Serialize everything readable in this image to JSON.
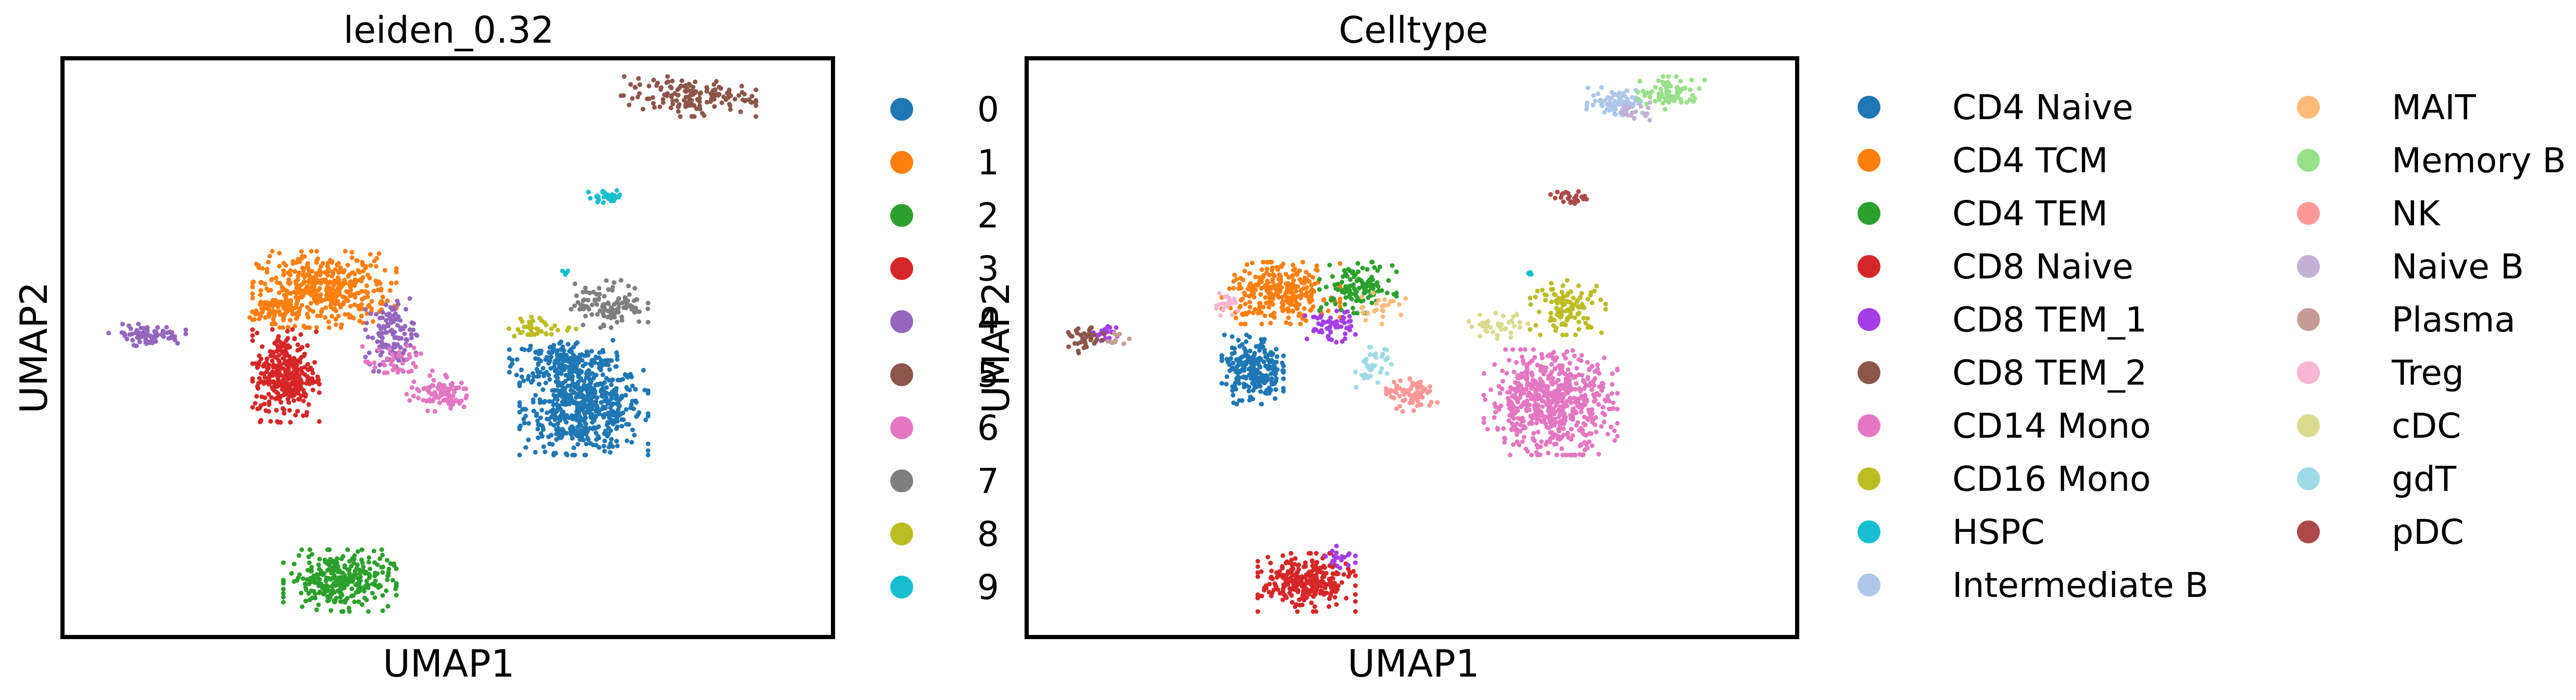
{
  "chart_data": [
    {
      "type": "scatter",
      "title": "leiden_0.32",
      "xlabel": "UMAP1",
      "ylabel": "UMAP2",
      "ticks": "none",
      "grid": false,
      "legend_position": "right",
      "series": [
        {
          "name": "0",
          "color": "#1f77b4",
          "clusters": [
            {
              "x": [
                -4.1,
                -1.6
              ],
              "y": [
                -6.2,
                -3.6
              ],
              "n": 560
            },
            {
              "x": [
                -4.3,
                -2.2
              ],
              "y": [
                -4.2,
                -3.0
              ],
              "n": 180
            }
          ]
        },
        {
          "name": "1",
          "color": "#ff7f0e",
          "clusters": [
            {
              "x": [
                -9.3,
                -6.5
              ],
              "y": [
                -2.7,
                -0.6
              ],
              "n": 420
            },
            {
              "x": [
                -9.4,
                -8.4
              ],
              "y": [
                -2.6,
                -1.8
              ],
              "n": 80
            }
          ]
        },
        {
          "name": "2",
          "color": "#2ca02c",
          "clusters": [
            {
              "x": [
                -8.7,
                -6.5
              ],
              "y": [
                -10.5,
                -8.8
              ],
              "n": 300
            }
          ]
        },
        {
          "name": "3",
          "color": "#d62728",
          "clusters": [
            {
              "x": [
                -9.3,
                -8.0
              ],
              "y": [
                -5.3,
                -2.7
              ],
              "n": 320
            }
          ]
        },
        {
          "name": "4",
          "color": "#9467bd",
          "clusters": [
            {
              "x": [
                -12.1,
                -10.6
              ],
              "y": [
                -3.2,
                -2.6
              ],
              "n": 80
            },
            {
              "x": [
                -7.1,
                -6.1
              ],
              "y": [
                -3.9,
                -1.9
              ],
              "n": 120
            }
          ]
        },
        {
          "name": "5",
          "color": "#8c564b",
          "clusters": [
            {
              "x": [
                -2.2,
                0.5
              ],
              "y": [
                3.1,
                4.2
              ],
              "n": 150
            }
          ]
        },
        {
          "name": "6",
          "color": "#e377c2",
          "clusters": [
            {
              "x": [
                -6.3,
                -5.0
              ],
              "y": [
                -5.0,
                -4.0
              ],
              "n": 90
            },
            {
              "x": [
                -7.2,
                -5.8
              ],
              "y": [
                -4.2,
                -3.2
              ],
              "n": 40
            }
          ]
        },
        {
          "name": "7",
          "color": "#7f7f7f",
          "clusters": [
            {
              "x": [
                -3.1,
                -1.6
              ],
              "y": [
                -2.7,
                -1.4
              ],
              "n": 110
            }
          ]
        },
        {
          "name": "8",
          "color": "#bcbd22",
          "clusters": [
            {
              "x": [
                -4.4,
                -3.0
              ],
              "y": [
                -3.0,
                -2.4
              ],
              "n": 40
            }
          ]
        },
        {
          "name": "9",
          "color": "#17becf",
          "clusters": [
            {
              "x": [
                -2.8,
                -2.0
              ],
              "y": [
                0.7,
                1.1
              ],
              "n": 30
            },
            {
              "x": [
                -3.3,
                -3.1
              ],
              "y": [
                -1.3,
                -1.1
              ],
              "n": 4
            }
          ]
        }
      ]
    },
    {
      "type": "scatter",
      "title": "Celltype",
      "xlabel": "UMAP1",
      "ylabel": "UMAP2",
      "ticks": "none",
      "grid": false,
      "legend_position": "right",
      "series": [
        {
          "name": "CD4 Naive",
          "color": "#1f77b4",
          "clusters": [
            {
              "x": [
                -9.2,
                -8.0
              ],
              "y": [
                -4.8,
                -2.9
              ],
              "n": 240
            }
          ]
        },
        {
          "name": "CD4 TCM",
          "color": "#ff7f0e",
          "clusters": [
            {
              "x": [
                -9.2,
                -6.9
              ],
              "y": [
                -2.6,
                -0.9
              ],
              "n": 300
            }
          ]
        },
        {
          "name": "CD4 TEM",
          "color": "#2ca02c",
          "clusters": [
            {
              "x": [
                -7.3,
                -5.8
              ],
              "y": [
                -2.3,
                -0.9
              ],
              "n": 120
            }
          ]
        },
        {
          "name": "CD8 Naive",
          "color": "#d62728",
          "clusters": [
            {
              "x": [
                -8.5,
                -6.6
              ],
              "y": [
                -10.5,
                -8.9
              ],
              "n": 280
            }
          ]
        },
        {
          "name": "CD8 TEM_1",
          "color": "#a53ee8",
          "clusters": [
            {
              "x": [
                -7.6,
                -6.6
              ],
              "y": [
                -3.1,
                -2.2
              ],
              "n": 60
            },
            {
              "x": [
                -11.7,
                -11.2
              ],
              "y": [
                -3.1,
                -2.6
              ],
              "n": 20
            },
            {
              "x": [
                -7.2,
                -6.6
              ],
              "y": [
                -9.4,
                -8.7
              ],
              "n": 20
            }
          ]
        },
        {
          "name": "CD8 TEM_2",
          "color": "#8c564b",
          "clusters": [
            {
              "x": [
                -12.2,
                -11.5
              ],
              "y": [
                -3.4,
                -2.7
              ],
              "n": 40
            }
          ]
        },
        {
          "name": "CD14 Mono",
          "color": "#e377c2",
          "clusters": [
            {
              "x": [
                -4.1,
                -1.5
              ],
              "y": [
                -6.2,
                -3.3
              ],
              "n": 620
            }
          ]
        },
        {
          "name": "CD16 Mono",
          "color": "#bcbd22",
          "clusters": [
            {
              "x": [
                -3.2,
                -1.7
              ],
              "y": [
                -2.9,
                -1.4
              ],
              "n": 110
            }
          ]
        },
        {
          "name": "HSPC",
          "color": "#17becf",
          "clusters": [
            {
              "x": [
                -3.3,
                -3.1
              ],
              "y": [
                -1.3,
                -1.1
              ],
              "n": 4
            }
          ]
        },
        {
          "name": "Intermediate B",
          "color": "#aec7e8",
          "clusters": [
            {
              "x": [
                -2.1,
                -0.9
              ],
              "y": [
                3.1,
                3.9
              ],
              "n": 80
            }
          ]
        },
        {
          "name": "MAIT",
          "color": "#ffbb78",
          "clusters": [
            {
              "x": [
                -6.6,
                -5.6
              ],
              "y": [
                -2.6,
                -1.6
              ],
              "n": 25
            }
          ]
        },
        {
          "name": "Memory B",
          "color": "#98df8a",
          "clusters": [
            {
              "x": [
                -1.1,
                0.2
              ],
              "y": [
                3.3,
                4.2
              ],
              "n": 80
            }
          ]
        },
        {
          "name": "NK",
          "color": "#ff9896",
          "clusters": [
            {
              "x": [
                -6.0,
                -5.0
              ],
              "y": [
                -5.0,
                -4.1
              ],
              "n": 80
            }
          ]
        },
        {
          "name": "Naive B",
          "color": "#c5b0d5",
          "clusters": [
            {
              "x": [
                -1.6,
                -0.8
              ],
              "y": [
                3.0,
                3.5
              ],
              "n": 20
            }
          ]
        },
        {
          "name": "Plasma",
          "color": "#c49c94",
          "clusters": [
            {
              "x": [
                -11.5,
                -11.0
              ],
              "y": [
                -3.2,
                -2.8
              ],
              "n": 10
            }
          ]
        },
        {
          "name": "Treg",
          "color": "#f7b6d2",
          "clusters": [
            {
              "x": [
                -9.4,
                -8.8
              ],
              "y": [
                -2.4,
                -1.7
              ],
              "n": 25
            }
          ]
        },
        {
          "name": "cDC",
          "color": "#dbdb8d",
          "clusters": [
            {
              "x": [
                -4.5,
                -3.2
              ],
              "y": [
                -3.0,
                -2.3
              ],
              "n": 40
            }
          ]
        },
        {
          "name": "gdT",
          "color": "#9edae5",
          "clusters": [
            {
              "x": [
                -6.6,
                -5.9
              ],
              "y": [
                -4.4,
                -3.2
              ],
              "n": 40
            }
          ]
        },
        {
          "name": "pDC",
          "color": "#ad494a",
          "clusters": [
            {
              "x": [
                -2.8,
                -2.1
              ],
              "y": [
                0.7,
                1.1
              ],
              "n": 25
            }
          ]
        }
      ]
    }
  ]
}
